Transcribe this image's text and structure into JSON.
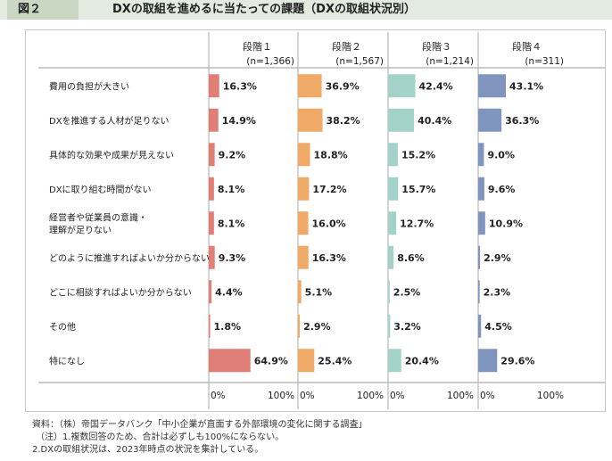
{
  "header": {
    "figure_label": "図２",
    "title": "DXの取組を進めるに当たっての課題（DXの取組状況別）"
  },
  "chart_data": {
    "type": "bar",
    "orientation": "horizontal",
    "categories": [
      "費用の負担が大きい",
      "DXを推進する人材が足りない",
      "具体的な効果や成果が見えない",
      "DXに取り組む時間がない",
      "経営者や従業員の意識・\n理解が足りない",
      "どのように推進すればよいか分からない",
      "どこに相談すればよいか分からない",
      "その他",
      "特になし"
    ],
    "series": [
      {
        "name": "段階１",
        "n": "(n=1,366)",
        "color": "#e07f78",
        "values": [
          16.3,
          14.9,
          9.2,
          8.1,
          8.1,
          9.3,
          4.4,
          1.8,
          64.9
        ]
      },
      {
        "name": "段階２",
        "n": "(n=1,567)",
        "color": "#eeaa66",
        "values": [
          36.9,
          38.2,
          18.8,
          17.2,
          16.0,
          16.3,
          5.1,
          2.9,
          25.4
        ]
      },
      {
        "name": "段階３",
        "n": "(n=1,214)",
        "color": "#a3d3c8",
        "values": [
          42.4,
          40.4,
          15.2,
          15.7,
          12.7,
          8.6,
          2.5,
          3.2,
          20.4
        ]
      },
      {
        "name": "段階４",
        "n": "(n=311)",
        "color": "#8095bd",
        "values": [
          43.1,
          36.3,
          9.0,
          9.6,
          10.9,
          2.9,
          2.3,
          4.5,
          29.6
        ]
      }
    ],
    "axis_labels": [
      "0%",
      "100%"
    ],
    "xlim": [
      0,
      100
    ],
    "value_suffix": "%"
  },
  "notes": {
    "source": "資料：（株）帝国データバンク「中小企業が直面する外部環境の変化に関する調査」",
    "note1": "（注）1.複数回答のため、合計は必ずしも100%にならない。",
    "note2": "2.DXの取組状況は、2023年時点の状況を集計している。"
  }
}
